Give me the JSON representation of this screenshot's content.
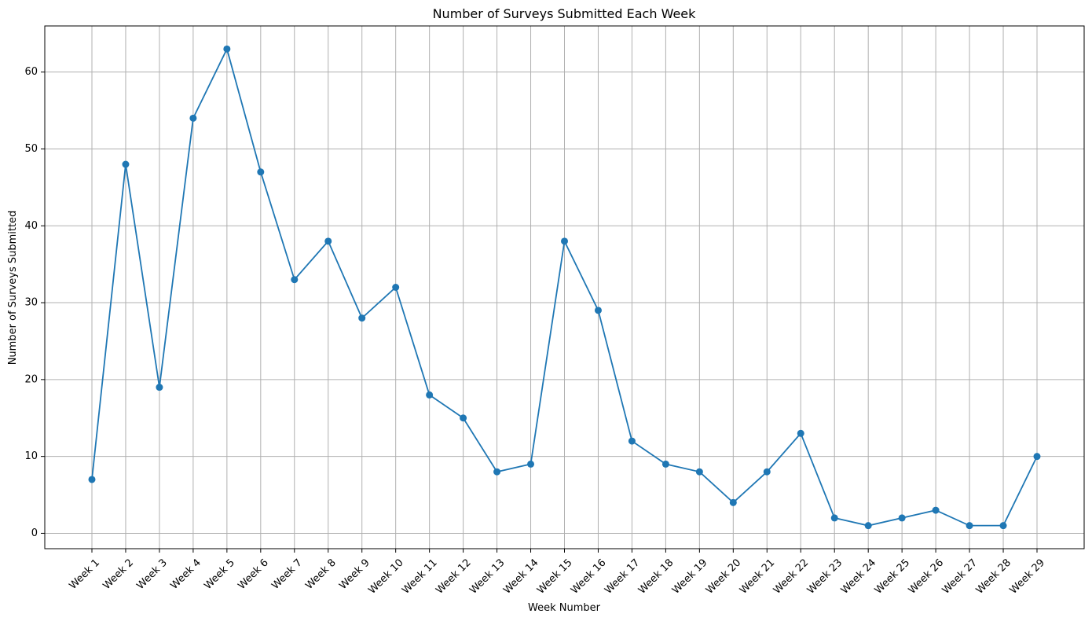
{
  "chart_data": {
    "type": "line",
    "title": "Number of Surveys Submitted Each Week",
    "xlabel": "Week Number",
    "ylabel": "Number of Surveys Submitted",
    "categories": [
      "Week 1",
      "Week 2",
      "Week 3",
      "Week 4",
      "Week 5",
      "Week 6",
      "Week 7",
      "Week 8",
      "Week 9",
      "Week 10",
      "Week 11",
      "Week 12",
      "Week 13",
      "Week 14",
      "Week 15",
      "Week 16",
      "Week 17",
      "Week 18",
      "Week 19",
      "Week 20",
      "Week 21",
      "Week 22",
      "Week 23",
      "Week 24",
      "Week 25",
      "Week 26",
      "Week 27",
      "Week 28",
      "Week 29"
    ],
    "series": [
      {
        "values": [
          7,
          48,
          19,
          54,
          63,
          47,
          33,
          38,
          28,
          32,
          18,
          15,
          8,
          9,
          38,
          29,
          12,
          9,
          8,
          4,
          8,
          13,
          2,
          1,
          2,
          3,
          1,
          1,
          10
        ],
        "color": "#1f77b4",
        "marker": "circle"
      }
    ],
    "ylim": [
      -2,
      66
    ],
    "yticks": [
      0,
      10,
      20,
      30,
      40,
      50,
      60
    ],
    "grid": true,
    "x_tick_rotation": 45,
    "legend": false
  }
}
